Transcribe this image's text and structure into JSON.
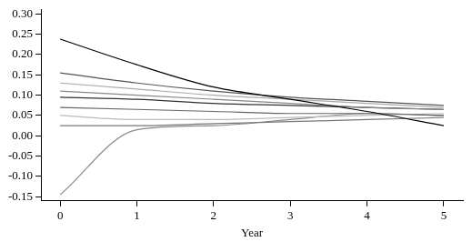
{
  "chart_data": {
    "type": "line",
    "x_label": "Year",
    "x": [
      0,
      1,
      2,
      3,
      4,
      5
    ],
    "xlim": [
      -0.25,
      5.25
    ],
    "xticks": [
      0,
      1,
      2,
      3,
      4,
      5
    ],
    "ylim": [
      -0.16,
      0.31
    ],
    "yticks": [
      {
        "value": -0.15,
        "label": "-0.15"
      },
      {
        "value": -0.1,
        "label": "-0.10"
      },
      {
        "value": -0.05,
        "label": "-0.05"
      },
      {
        "value": 0,
        "label": "0.00"
      },
      {
        "value": 0.05,
        "label": "0.05"
      },
      {
        "value": 0.1,
        "label": "0.10"
      },
      {
        "value": 0.15,
        "label": "0.15"
      },
      {
        "value": 0.2,
        "label": "0.20"
      },
      {
        "value": 0.25,
        "label": "0.25"
      },
      {
        "value": 0.3,
        "label": "0.30"
      }
    ],
    "grid": false,
    "series": [
      {
        "color": "#000000",
        "values": [
          0.238,
          0.175,
          0.12,
          0.09,
          0.06,
          0.025
        ]
      },
      {
        "color": "#555555",
        "values": [
          0.155,
          0.13,
          0.11,
          0.095,
          0.085,
          0.075
        ]
      },
      {
        "color": "#aaaaaa",
        "values": [
          0.13,
          0.115,
          0.1,
          0.09,
          0.08,
          0.07
        ]
      },
      {
        "color": "#888888",
        "values": [
          0.11,
          0.1,
          0.09,
          0.08,
          0.07,
          0.065
        ]
      },
      {
        "color": "#333333",
        "values": [
          0.095,
          0.09,
          0.08,
          0.075,
          0.07,
          0.065
        ]
      },
      {
        "color": "#666666",
        "values": [
          0.07,
          0.065,
          0.06,
          0.055,
          0.055,
          0.05
        ]
      },
      {
        "color": "#bbbbbb",
        "values": [
          0.05,
          0.04,
          0.04,
          0.045,
          0.05,
          0.055
        ]
      },
      {
        "color": "#777777",
        "values": [
          0.025,
          0.025,
          0.03,
          0.035,
          0.04,
          0.045
        ]
      },
      {
        "color": "#8a8a8a",
        "values": [
          -0.145,
          0.015,
          0.025,
          0.04,
          0.055,
          0.05
        ]
      }
    ]
  }
}
